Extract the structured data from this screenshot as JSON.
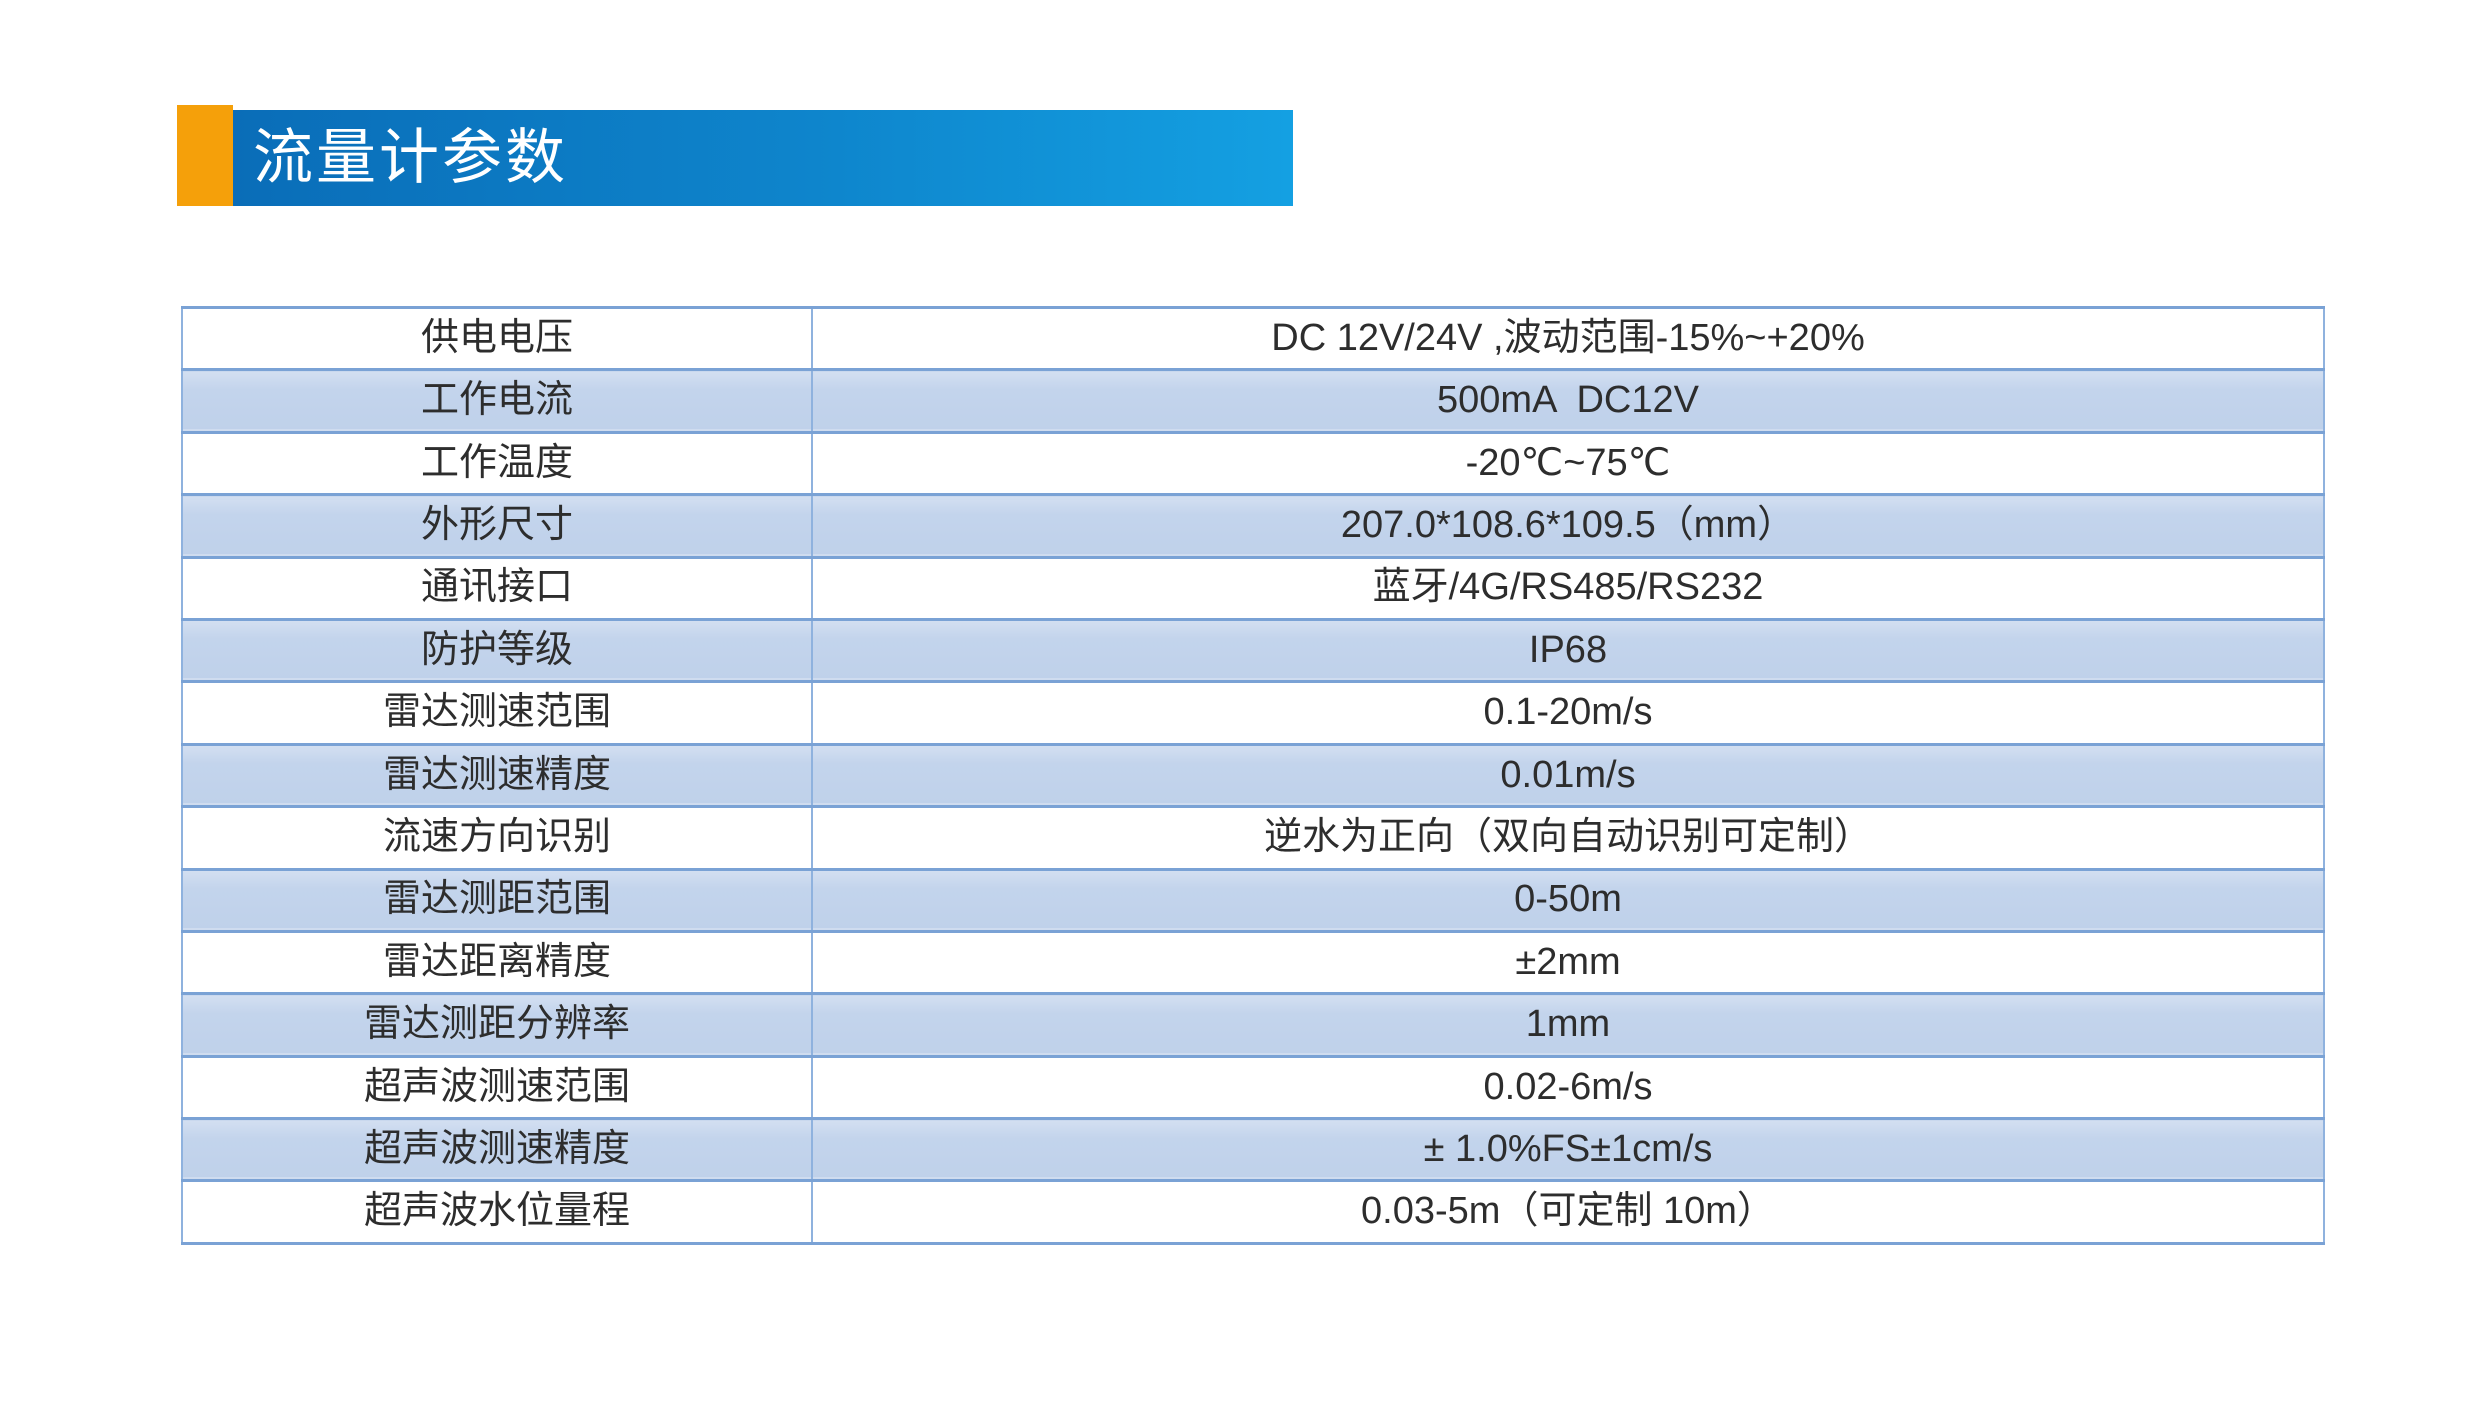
{
  "header": {
    "title": "流量计参数",
    "accent_color": "#F5A00A",
    "bar_gradient_left": "#0A6DB8",
    "bar_gradient_right": "#14A0E2",
    "title_color": "#FFFFFF"
  },
  "table": {
    "band_fill": "#C3D4EC",
    "border_color": "#7AA2D5",
    "text_color": "#2D2D2D",
    "rows": [
      {
        "label": "供电电压",
        "value": "DC 12V/24V ,波动范围-15%~+20%"
      },
      {
        "label": "工作电流",
        "value": "500mA  DC12V"
      },
      {
        "label": "工作温度",
        "value": "-20℃~75℃"
      },
      {
        "label": "外形尺寸",
        "value": "207.0*108.6*109.5（mm）"
      },
      {
        "label": "通讯接口",
        "value": "蓝牙/4G/RS485/RS232"
      },
      {
        "label": "防护等级",
        "value": "IP68"
      },
      {
        "label": "雷达测速范围",
        "value": "0.1-20m/s"
      },
      {
        "label": "雷达测速精度",
        "value": "0.01m/s"
      },
      {
        "label": "流速方向识别",
        "value": "逆水为正向（双向自动识别可定制）"
      },
      {
        "label": "雷达测距范围",
        "value": "0-50m"
      },
      {
        "label": "雷达距离精度",
        "value": "±2mm"
      },
      {
        "label": "雷达测距分辨率",
        "value": "1mm"
      },
      {
        "label": "超声波测速范围",
        "value": "0.02-6m/s"
      },
      {
        "label": "超声波测速精度",
        "value": "± 1.0%FS±1cm/s"
      },
      {
        "label": "超声波水位量程",
        "value": "0.03-5m（可定制 10m）"
      }
    ]
  }
}
